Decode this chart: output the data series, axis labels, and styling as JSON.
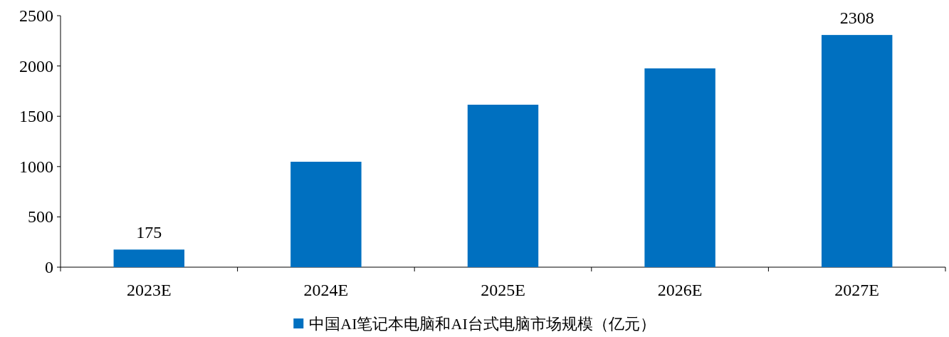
{
  "chart_data": {
    "type": "bar",
    "categories": [
      "2023E",
      "2024E",
      "2025E",
      "2026E",
      "2027E"
    ],
    "series": [
      {
        "name": "中国AI笔记本电脑和AI台式电脑市场规模（亿元）",
        "color": "#0070c0",
        "values": [
          175,
          1048,
          1615,
          1976,
          2308
        ],
        "value_labels": [
          "175",
          null,
          null,
          null,
          "2308"
        ]
      }
    ],
    "ylim": [
      0,
      2500
    ],
    "yticks": [
      0,
      500,
      1000,
      1500,
      2000,
      2500
    ],
    "legend": "bottom"
  }
}
